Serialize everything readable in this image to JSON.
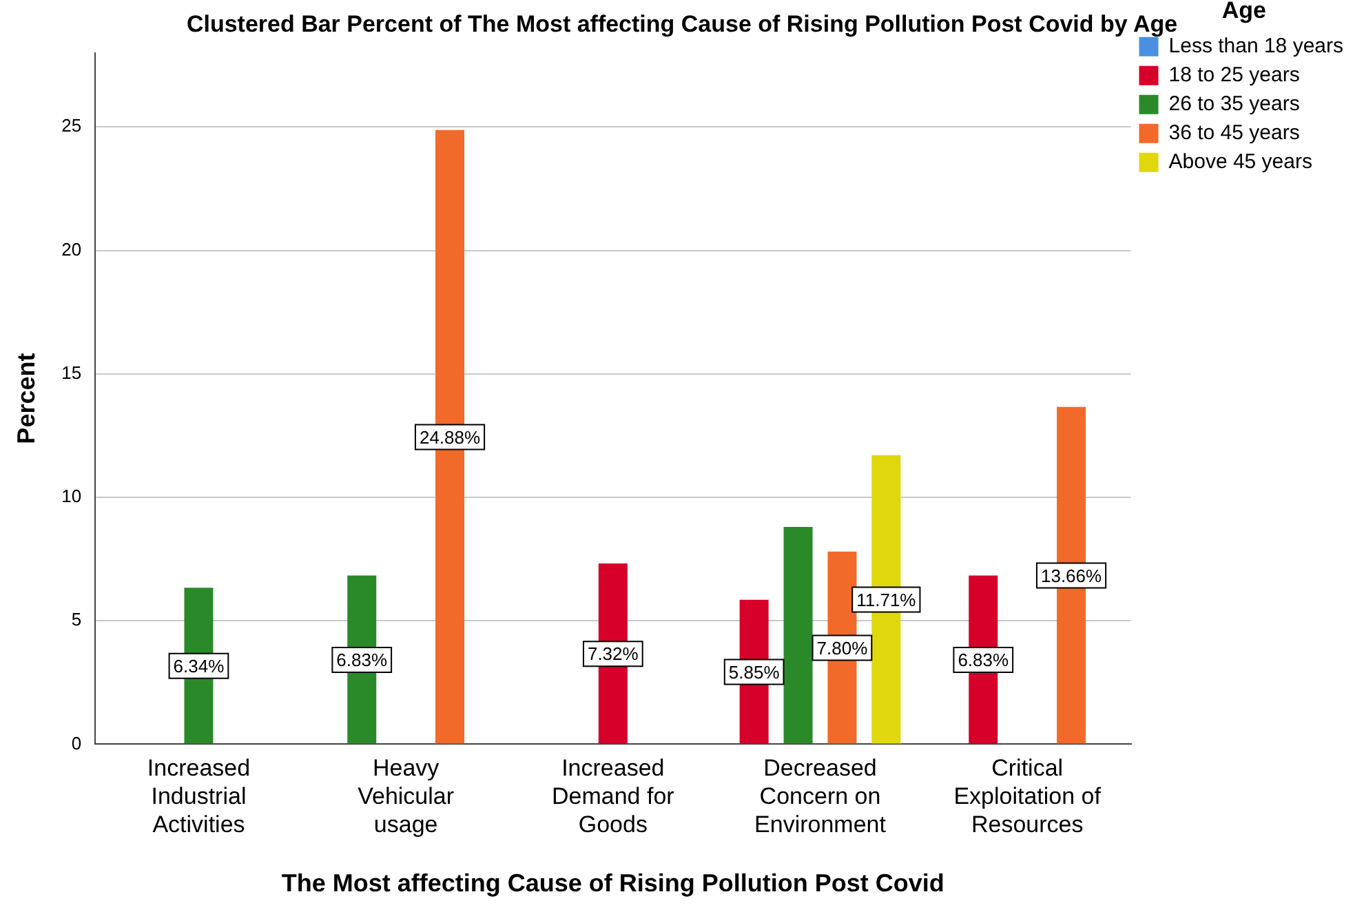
{
  "chart_data": {
    "type": "bar",
    "title": "Clustered Bar Percent of The Most affecting Cause of Rising Pollution Post Covid by Age",
    "xlabel": "The Most affecting Cause of Rising Pollution Post Covid",
    "ylabel": "Percent",
    "legend_title": "Age",
    "categories": [
      "Increased Industrial Activities",
      "Heavy Vehicular usage",
      "Increased Demand for Goods",
      "Decreased Concern on Environment",
      "Critical Exploitation of Resources"
    ],
    "series": [
      {
        "name": "Less than 18 years",
        "color": "#4a90e2",
        "values": [
          null,
          null,
          null,
          null,
          null
        ]
      },
      {
        "name": "18 to 25 years",
        "color": "#d6002a",
        "values": [
          null,
          null,
          7.32,
          5.85,
          6.83
        ],
        "value_labels": [
          null,
          null,
          "7.32%",
          "5.85%",
          "6.83%"
        ]
      },
      {
        "name": "26 to 35 years",
        "color": "#2a8a2a",
        "values": [
          6.34,
          6.83,
          null,
          8.8,
          null
        ],
        "value_labels": [
          "6.34%",
          "6.83%",
          null,
          null,
          null
        ]
      },
      {
        "name": "36 to 45 years",
        "color": "#f26a2a",
        "values": [
          null,
          24.88,
          null,
          7.8,
          13.66
        ],
        "value_labels": [
          null,
          "24.88%",
          null,
          "7.80%",
          "13.66%"
        ]
      },
      {
        "name": "Above 45 years",
        "color": "#e0d80c",
        "values": [
          null,
          null,
          null,
          11.71,
          null
        ],
        "value_labels": [
          null,
          null,
          null,
          "11.71%",
          null
        ]
      }
    ],
    "ylim": [
      0,
      28
    ],
    "yticks": [
      0,
      5,
      10,
      15,
      20,
      25
    ],
    "grid": "y",
    "legend": "right"
  }
}
